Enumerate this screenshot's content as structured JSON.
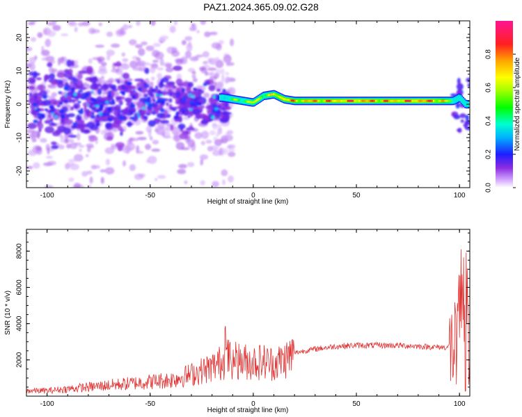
{
  "title": "PAZ1.2024.365.09.02.G28",
  "chart_data": [
    {
      "type": "heatmap",
      "xlabel": "Height of straight line (km)",
      "ylabel": "Frequency (Hz)",
      "xlim": [
        -110,
        105
      ],
      "ylim": [
        -25,
        25
      ],
      "xticks": [
        -100,
        -50,
        0,
        50,
        100
      ],
      "yticks": [
        -20,
        -10,
        0,
        10,
        20
      ],
      "colorbar": {
        "label": "Normalized spectral amplitude",
        "range": [
          0.0,
          1.0
        ],
        "ticks": [
          "0.0",
          "0.2",
          "0.4",
          "0.6",
          "0.8"
        ],
        "colormap": "hsv-rainbow (violet → blue → cyan → green → yellow → orange → red → magenta)"
      },
      "ridge": {
        "description": "Scattered violet/blue blobs over -25..+25 Hz for heights below ~-15 km; a concentrated band near 0 Hz (±1.5 Hz) from ~-15 km to ~97 km, mostly cyan/green with red-orange core above ~15 km; spread again near 100 km",
        "x": [
          -15,
          -10,
          -5,
          0,
          5,
          10,
          15,
          20,
          30,
          40,
          50,
          60,
          70,
          80,
          90,
          97,
          100,
          103
        ],
        "center_hz": [
          2.0,
          1.5,
          1.0,
          0.5,
          2.5,
          3.0,
          1.5,
          1.0,
          1.0,
          1.0,
          1.0,
          1.0,
          1.0,
          1.0,
          1.0,
          1.0,
          2.0,
          0.0
        ],
        "amplitude": [
          0.35,
          0.55,
          0.6,
          0.7,
          0.65,
          0.7,
          0.85,
          0.8,
          0.85,
          0.85,
          0.9,
          0.85,
          0.85,
          0.9,
          0.85,
          0.6,
          0.4,
          0.3
        ]
      }
    },
    {
      "type": "line",
      "xlabel": "Height of straight line (km)",
      "ylabel": "SNR (10 * v/v)",
      "xlim": [
        -110,
        105
      ],
      "ylim": [
        0,
        9200
      ],
      "xticks": [
        -100,
        -50,
        0,
        50,
        100
      ],
      "yticks": [
        2000,
        4000,
        6000,
        8000
      ],
      "series_color": "#e03030",
      "series": [
        {
          "x": [
            -110,
            -100,
            -90,
            -80,
            -70,
            -60,
            -50,
            -40,
            -30,
            -25,
            -20,
            -15,
            -12,
            -10,
            -5,
            0,
            5,
            10,
            15,
            20,
            25,
            30,
            40,
            50,
            60,
            70,
            80,
            90,
            95,
            98,
            100,
            101,
            102,
            103,
            105
          ],
          "values": [
            300,
            300,
            400,
            500,
            600,
            700,
            800,
            900,
            1200,
            1400,
            1600,
            1900,
            2100,
            2000,
            1900,
            1900,
            1900,
            1800,
            2000,
            2400,
            2500,
            2600,
            2750,
            2800,
            2800,
            2800,
            2750,
            2700,
            2700,
            2600,
            2500,
            3500,
            4500,
            4200,
            4100
          ]
        }
      ]
    }
  ]
}
